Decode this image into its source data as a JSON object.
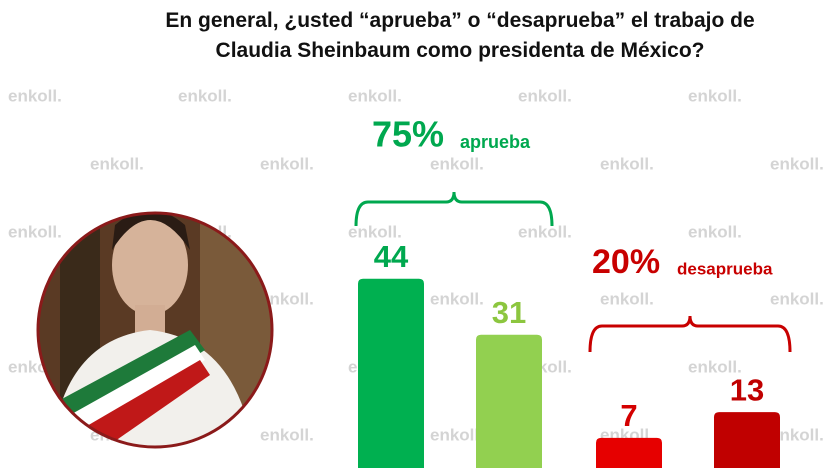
{
  "chart_data": {
    "type": "bar",
    "title": "En general, ¿usted “aprueba” o “desaprueba” el trabajo de Claudia Sheinbaum como presidenta de México?",
    "categories": [
      null,
      null,
      null,
      null
    ],
    "values": [
      44,
      31,
      7,
      13
    ],
    "colors": [
      "#00b050",
      "#92d050",
      "#e60000",
      "#c00000"
    ],
    "label_colors": [
      "#00a84f",
      "#8cc63f",
      "#d40000",
      "#c00000"
    ],
    "annotations": [
      "75%",
      "aprueba",
      "20%",
      "desaprueba"
    ],
    "annotation_colors": [
      "#00a84f",
      "#c80000"
    ],
    "watermark": "enkoll."
  }
}
